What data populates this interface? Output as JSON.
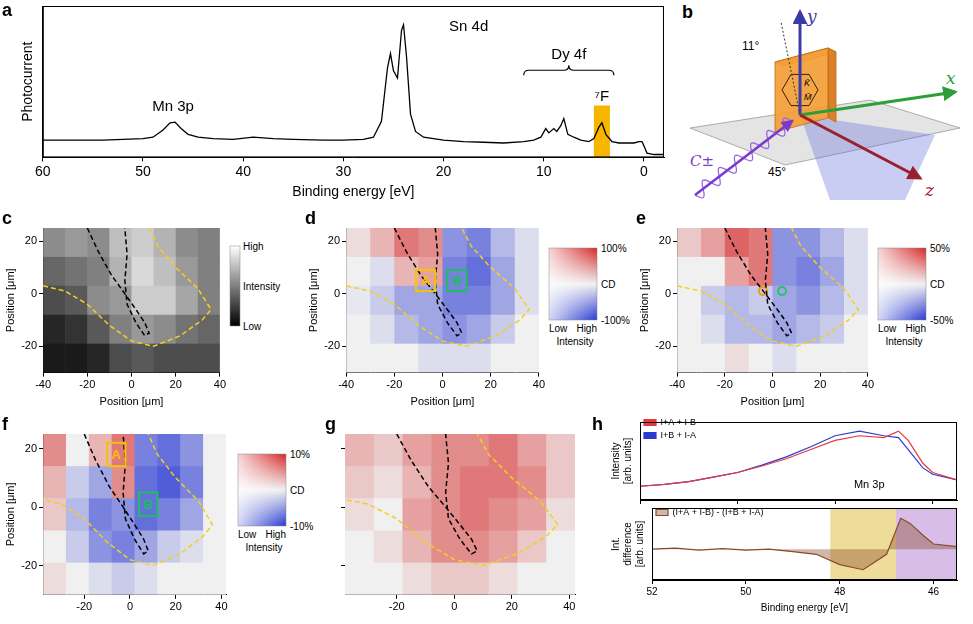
{
  "chart_data": [
    {
      "panel": "a",
      "type": "line",
      "x_label": "Binding energy [eV]",
      "y_label": "Photocurrent",
      "xlim": [
        60,
        -2
      ],
      "xticks": [
        60,
        50,
        40,
        30,
        20,
        10,
        0
      ],
      "ylim": [
        0,
        1.05
      ],
      "tick_labels": "x",
      "x": [
        60,
        58,
        56,
        54,
        52,
        50,
        49,
        48,
        47.3,
        46.8,
        46.2,
        45.5,
        44.5,
        43,
        41,
        39,
        37,
        35,
        32,
        30,
        28,
        27,
        26.2,
        25.6,
        25.3,
        25,
        24.6,
        24.2,
        24,
        23.7,
        23.3,
        22.8,
        22,
        20,
        18,
        16,
        14,
        12,
        11,
        10.3,
        9.8,
        9.5,
        9,
        8.7,
        8.3,
        8,
        7.6,
        7,
        6.3,
        5.5,
        5,
        4.5,
        4.2,
        3.8,
        3.2,
        2.5,
        1.5,
        1,
        0.5,
        0.2,
        0,
        -0.3,
        -1,
        -2
      ],
      "series": [
        {
          "color": "#000000",
          "values": [
            0.12,
            0.12,
            0.12,
            0.12,
            0.125,
            0.13,
            0.14,
            0.19,
            0.24,
            0.245,
            0.2,
            0.16,
            0.14,
            0.13,
            0.125,
            0.14,
            0.13,
            0.125,
            0.12,
            0.12,
            0.125,
            0.14,
            0.25,
            0.62,
            0.72,
            0.6,
            0.55,
            0.88,
            0.92,
            0.7,
            0.3,
            0.18,
            0.14,
            0.12,
            0.11,
            0.105,
            0.1,
            0.11,
            0.12,
            0.14,
            0.2,
            0.17,
            0.2,
            0.18,
            0.22,
            0.27,
            0.16,
            0.14,
            0.12,
            0.11,
            0.13,
            0.21,
            0.24,
            0.16,
            0.11,
            0.1,
            0.1,
            0.1,
            0.11,
            0.11,
            0.08,
            0.03,
            0.02,
            0.02
          ]
        }
      ],
      "annotations": [
        {
          "text": "Mn 3p",
          "x": 47,
          "y": 0.3
        },
        {
          "text": "Sn 4d",
          "x": 17.5,
          "y": 0.85
        },
        {
          "text": "Dy 4f",
          "x": 7.5,
          "y": 0.66,
          "brace": [
            12,
            3
          ]
        },
        {
          "text": "⁷F",
          "x": 4.2,
          "y": 0.37
        }
      ],
      "highlight": {
        "x": [
          3.4,
          5
        ],
        "y": [
          0,
          0.36
        ],
        "color": "#f7b500"
      }
    },
    {
      "panel": "c",
      "type": "heatmap",
      "x_label": "Position [μm]",
      "y_label": "Position [μm]",
      "xlim": [
        -40,
        40
      ],
      "xticks": [
        -40,
        -20,
        0,
        20,
        40
      ],
      "ylim": [
        -30,
        25
      ],
      "yticks": [
        -20,
        0,
        20
      ],
      "x": [
        -35,
        -25,
        -15,
        -5,
        5,
        15,
        25,
        35
      ],
      "y": [
        19.5,
        8.5,
        -2.5,
        -13.5,
        -24.5
      ],
      "cells": [
        [
          0.55,
          0.6,
          0.55,
          0.75,
          0.8,
          0.7,
          0.55,
          0.5
        ],
        [
          0.4,
          0.45,
          0.5,
          0.7,
          0.85,
          0.75,
          0.6,
          0.5
        ],
        [
          0.3,
          0.35,
          0.55,
          0.6,
          0.8,
          0.8,
          0.65,
          0.5
        ],
        [
          0.15,
          0.2,
          0.35,
          0.5,
          0.6,
          0.55,
          0.45,
          0.4
        ],
        [
          0.1,
          0.1,
          0.15,
          0.3,
          0.35,
          0.3,
          0.3,
          0.3
        ]
      ],
      "color": [
        "#000000",
        "#ffffff"
      ],
      "color_range": [
        0,
        1
      ],
      "colorbar": {
        "label": "Intensity",
        "ticks": [
          {
            "value": 1,
            "label": "High"
          },
          {
            "value": 0,
            "label": "Low"
          }
        ]
      }
    },
    {
      "panel": "d",
      "type": "heatmap",
      "x_label": "Position [μm]",
      "y_label": "Position [μm]",
      "xlim": [
        -40,
        40
      ],
      "xticks": [
        -40,
        -20,
        0,
        20,
        40
      ],
      "ylim": [
        -30,
        25
      ],
      "yticks": [
        -20,
        0,
        20
      ],
      "x": [
        -35,
        -25,
        -15,
        -5,
        5,
        15,
        25,
        35
      ],
      "y": [
        19.5,
        8.5,
        -2.5,
        -13.5,
        -24.5
      ],
      "cells": [
        [
          10,
          30,
          60,
          50,
          -50,
          -60,
          -30,
          -10
        ],
        [
          0,
          -10,
          30,
          40,
          -60,
          -70,
          -40,
          -10
        ],
        [
          -5,
          -20,
          -40,
          -40,
          -60,
          -60,
          -40,
          -10
        ],
        [
          0,
          -10,
          -30,
          -40,
          -50,
          -40,
          -20,
          0
        ],
        [
          0,
          0,
          0,
          -10,
          -10,
          -10,
          0,
          0
        ]
      ],
      "color": [
        "#2838d2",
        "#f0f0f0",
        "#d62728"
      ],
      "color_range": [
        -100,
        100
      ],
      "colorbar": {
        "label": "CD",
        "ticks": [
          {
            "value": 100,
            "label": "100%"
          },
          {
            "value": -100,
            "label": "-100%"
          }
        ],
        "intensity_label": "Intensity",
        "intensity_ticks": [
          "Low",
          "High"
        ]
      },
      "boxes": [
        {
          "label": "A",
          "x": [
            -11,
            -3
          ],
          "y": [
            1,
            9
          ],
          "color": "#f5c400"
        },
        {
          "label": "B",
          "x": [
            2,
            10
          ],
          "y": [
            1,
            9
          ],
          "color": "#19c25a"
        }
      ]
    },
    {
      "panel": "e",
      "type": "heatmap",
      "x_label": "Position [μm]",
      "y_label": "Position [μm]",
      "xlim": [
        -40,
        40
      ],
      "xticks": [
        -40,
        -20,
        0,
        20,
        40
      ],
      "ylim": [
        -30,
        25
      ],
      "yticks": [
        -20,
        0,
        20
      ],
      "x": [
        -35,
        -25,
        -15,
        -5,
        5,
        15,
        25,
        35
      ],
      "y": [
        19.5,
        8.5,
        -2.5,
        -13.5,
        -24.5
      ],
      "cells": [
        [
          10,
          20,
          35,
          30,
          -25,
          -25,
          -15,
          -5
        ],
        [
          0,
          0,
          20,
          30,
          -25,
          -30,
          -20,
          -5
        ],
        [
          0,
          -10,
          -15,
          -10,
          -20,
          -25,
          -15,
          -5
        ],
        [
          0,
          -5,
          -15,
          -15,
          -20,
          -15,
          -10,
          0
        ],
        [
          0,
          0,
          5,
          0,
          -5,
          0,
          0,
          0
        ]
      ],
      "color": [
        "#2838d2",
        "#f0f0f0",
        "#d62728"
      ],
      "color_range": [
        -50,
        50
      ],
      "colorbar": {
        "label": "CD",
        "ticks": [
          {
            "value": 50,
            "label": "50%"
          },
          {
            "value": -50,
            "label": "-50%"
          }
        ],
        "intensity_label": "Intensity",
        "intensity_ticks": [
          "Low",
          "High"
        ]
      },
      "markers": [
        {
          "x": -4,
          "y": 1,
          "color": "#f39c12"
        },
        {
          "x": 4,
          "y": 1,
          "color": "#27c46a"
        }
      ]
    },
    {
      "panel": "f",
      "type": "heatmap",
      "y_label": "Position [μm]",
      "xlim": [
        -38,
        42
      ],
      "xticks": [
        -20,
        0,
        20,
        40
      ],
      "ylim": [
        -30,
        25
      ],
      "yticks": [
        -20,
        0,
        20
      ],
      "x": [
        -33,
        -23,
        -13,
        -3,
        7,
        17,
        27,
        37
      ],
      "y": [
        19.5,
        8.5,
        -2.5,
        -13.5,
        -24.5
      ],
      "cells": [
        [
          5,
          0,
          3,
          6,
          -6,
          -7,
          -5,
          0
        ],
        [
          3,
          -2,
          -4,
          5,
          -7,
          -8,
          -6,
          0
        ],
        [
          2,
          -3,
          -6,
          -5,
          -7,
          -6,
          -4,
          0
        ],
        [
          0,
          -2,
          -5,
          -6,
          -4,
          -2,
          -1,
          0
        ],
        [
          1,
          0,
          -1,
          -2,
          -1,
          0,
          0,
          0
        ]
      ],
      "color": [
        "#2838d2",
        "#f0f0f0",
        "#d62728"
      ],
      "color_range": [
        -10,
        10
      ],
      "colorbar": {
        "label": "CD",
        "ticks": [
          {
            "value": 10,
            "label": "10%"
          },
          {
            "value": -10,
            "label": "-10%"
          }
        ],
        "intensity_label": "Intensity",
        "intensity_ticks": [
          "Low",
          "High"
        ]
      },
      "boxes": [
        {
          "label": "A",
          "x": [
            -10,
            -2
          ],
          "y": [
            14,
            22
          ],
          "color": "#f5c400"
        },
        {
          "label": "B",
          "x": [
            4,
            12
          ],
          "y": [
            -3,
            5
          ],
          "color": "#19c25a"
        }
      ]
    },
    {
      "panel": "g",
      "type": "heatmap",
      "tick_labels": "x",
      "xlim": [
        -38,
        42
      ],
      "xticks": [
        -20,
        0,
        20,
        40
      ],
      "ylim": [
        -30,
        25
      ],
      "yticks": [
        -20,
        0,
        20
      ],
      "x": [
        -33,
        -23,
        -13,
        -3,
        7,
        17,
        27,
        37
      ],
      "y": [
        19.5,
        8.5,
        -2.5,
        -13.5,
        -24.5
      ],
      "cells": [
        [
          3,
          2,
          4,
          5,
          5,
          6,
          4,
          2
        ],
        [
          2,
          1,
          3,
          5,
          6,
          6,
          5,
          2
        ],
        [
          1,
          0,
          4,
          5,
          6,
          5,
          4,
          1
        ],
        [
          0,
          1,
          3,
          5,
          5,
          4,
          2,
          0
        ],
        [
          0,
          0,
          1,
          2,
          2,
          1,
          0,
          0
        ]
      ],
      "color": [
        "#2838d2",
        "#f0f0f0",
        "#d62728"
      ],
      "color_range": [
        -10,
        10
      ]
    },
    {
      "panel": "h",
      "type": "line",
      "y_label": "Intensity [arb. units]",
      "xlim": [
        52,
        45.5
      ],
      "xticks": [
        52,
        50,
        48,
        46
      ],
      "ylim": [
        0.2,
        1.05
      ],
      "tick_labels": false,
      "legend": "upper left",
      "x": [
        52,
        51.5,
        51,
        50.5,
        50,
        49.5,
        49,
        48.5,
        48,
        47.5,
        47,
        46.7,
        46.5,
        46.2,
        46,
        45.5
      ],
      "series": [
        {
          "name": "I+A + I-B",
          "color": "#e8383d",
          "values": [
            0.35,
            0.37,
            0.4,
            0.45,
            0.5,
            0.57,
            0.65,
            0.75,
            0.85,
            0.9,
            0.88,
            0.95,
            0.85,
            0.6,
            0.5,
            0.42
          ]
        },
        {
          "name": "I+B + I-A",
          "color": "#2a3ad0",
          "values": [
            0.35,
            0.37,
            0.4,
            0.45,
            0.5,
            0.58,
            0.67,
            0.78,
            0.9,
            0.95,
            0.9,
            0.88,
            0.75,
            0.55,
            0.48,
            0.42
          ]
        }
      ],
      "annotations": [
        {
          "text": "Mn 3p",
          "x": 47.3,
          "y": 0.3
        }
      ]
    },
    {
      "type": "line",
      "x_label": "Binding energy [eV]",
      "y_label": "Int. difference [arb. units]",
      "xlim": [
        52,
        45.5
      ],
      "xticks": [
        52,
        50,
        48,
        46
      ],
      "ylim": [
        -0.6,
        0.8
      ],
      "tick_labels": "x",
      "legend": "upper left",
      "x": [
        52,
        51.5,
        51,
        50.5,
        50,
        49.5,
        49,
        48.5,
        48,
        47.5,
        47,
        46.7,
        46.5,
        46.2,
        46,
        45.5
      ],
      "series": [
        {
          "name": "(I+A + I-B) - (I+B + I-A)",
          "color": "#8a4a2a",
          "type": "area",
          "values": [
            0,
            0.02,
            -0.02,
            0.01,
            -0.02,
            0,
            -0.05,
            -0.1,
            -0.3,
            -0.4,
            -0.1,
            0.6,
            0.5,
            0.25,
            0.1,
            0.05
          ]
        }
      ],
      "bands": [
        {
          "x": [
            48.2,
            46.8
          ],
          "color": "#eedc9a"
        },
        {
          "x": [
            46.8,
            45.5
          ],
          "color": "#d8bde8"
        }
      ]
    }
  ],
  "outlines": [
    {
      "color": "#f0d020",
      "line_style": "dashed",
      "x": [
        -40,
        -30,
        -20,
        -10,
        0,
        10,
        22,
        32,
        36,
        30,
        20,
        12,
        8
      ],
      "y": [
        3,
        1,
        -4,
        -12,
        -18,
        -20,
        -16,
        -10,
        -6,
        2,
        10,
        18,
        25
      ]
    },
    {
      "color": "#000000",
      "line_style": "dashed",
      "x": [
        -20,
        -15,
        -9,
        -3,
        2,
        6,
        8,
        6,
        2,
        -2,
        -3,
        -2,
        -3
      ],
      "y": [
        25,
        16,
        7,
        0,
        -6,
        -11,
        -15,
        -16,
        -11,
        -4,
        5,
        15,
        25
      ]
    }
  ],
  "diagram": {
    "panel": "b",
    "axes": {
      "x": "x",
      "y": "y",
      "z": "z"
    },
    "tilt": "11°",
    "incidence": "45°",
    "light": "C±",
    "sample_labels": [
      "K̄",
      "M̄"
    ]
  }
}
